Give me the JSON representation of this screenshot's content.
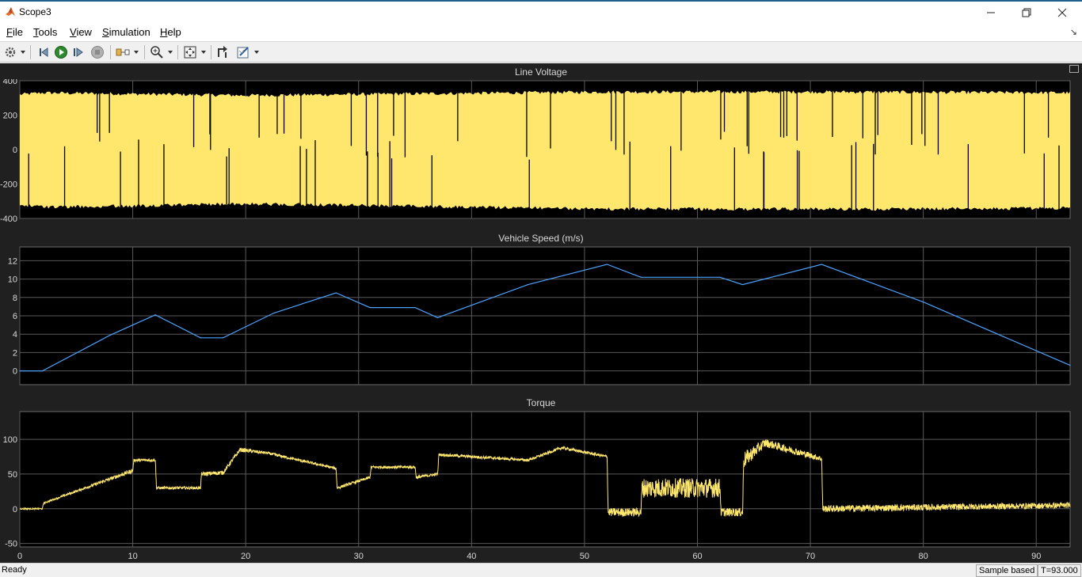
{
  "window": {
    "title": "Scope3",
    "icons": {
      "app": "matlab-logo-icon",
      "minimize": "minimize-icon",
      "restore": "restore-icon",
      "close": "close-icon"
    },
    "undock_icon": "undock-arrow-icon"
  },
  "menu": [
    {
      "label": "File",
      "mnemonic": "F",
      "rest": "ile"
    },
    {
      "label": "Tools",
      "mnemonic": "T",
      "rest": "ools"
    },
    {
      "label": "View",
      "mnemonic": "V",
      "rest": "iew"
    },
    {
      "label": "Simulation",
      "mnemonic": "S",
      "rest": "imulation"
    },
    {
      "label": "Help",
      "mnemonic": "H",
      "rest": "elp"
    }
  ],
  "toolbar": [
    "settings-gear-icon",
    "dropdown-arrow-icon",
    "step-back-icon",
    "run-icon",
    "step-forward-icon",
    "stop-icon",
    "highlight-signal-icon",
    "dropdown-arrow-icon",
    "zoom-in-icon",
    "dropdown-arrow-icon",
    "autoscale-icon",
    "dropdown-arrow-icon",
    "trigger-icon",
    "measurements-icon",
    "dropdown-arrow-icon"
  ],
  "colors": {
    "plot_bg": "#000000",
    "figure_bg": "#202020",
    "grid": "#5a5a5a",
    "axis_text": "#d8d8d8",
    "yellow_signal": "#ffe66d",
    "blue_signal": "#4aa3ff"
  },
  "chart_data": [
    {
      "type": "line",
      "title": "Line Voltage",
      "xlim": [
        0,
        93
      ],
      "ylim": [
        -400,
        400
      ],
      "yticks": [
        400,
        200,
        0,
        -200,
        -400
      ],
      "xticks": [
        0,
        10,
        20,
        30,
        40,
        50,
        60,
        70,
        80,
        90
      ],
      "show_x_tick_labels": false,
      "grid": true,
      "series": [
        {
          "color": "#ffe66d",
          "style": "pwm-band",
          "envelope_x": [
            0,
            2,
            20,
            52,
            72,
            93
          ],
          "upper": [
            320,
            330,
            315,
            335,
            335,
            330
          ],
          "lower": [
            -320,
            -335,
            -315,
            -345,
            -345,
            -340
          ]
        }
      ]
    },
    {
      "type": "line",
      "title": "Vehicle Speed (m/s)",
      "xlim": [
        0,
        93
      ],
      "ylim": [
        -1.5,
        13.5
      ],
      "yticks": [
        12,
        10,
        8,
        6,
        4,
        2,
        0
      ],
      "xticks": [
        0,
        10,
        20,
        30,
        40,
        50,
        60,
        70,
        80,
        90
      ],
      "show_x_tick_labels": false,
      "grid": true,
      "series": [
        {
          "color": "#4aa3ff",
          "x": [
            0,
            2,
            8,
            12,
            16,
            18,
            22.5,
            28,
            31,
            35,
            37,
            45,
            52,
            55,
            62,
            64,
            71,
            80,
            93
          ],
          "y": [
            0,
            0,
            3.9,
            6.1,
            3.6,
            3.6,
            6.3,
            8.5,
            6.9,
            6.9,
            5.8,
            9.4,
            11.6,
            10.2,
            10.2,
            9.4,
            11.6,
            7.5,
            0.6
          ]
        }
      ]
    },
    {
      "type": "line",
      "title": "Torque",
      "xlim": [
        0,
        93
      ],
      "ylim": [
        -55,
        140
      ],
      "yticks": [
        100,
        50,
        0,
        -50
      ],
      "xticks": [
        0,
        10,
        20,
        30,
        40,
        50,
        60,
        70,
        80,
        90
      ],
      "xticklabels": [
        "0",
        "10",
        "20",
        "30",
        "40",
        "50",
        "60",
        "70",
        "80",
        "90"
      ],
      "show_x_tick_labels": true,
      "grid": true,
      "series": [
        {
          "color": "#ffe66d",
          "x": [
            0,
            2,
            2.1,
            10,
            10.1,
            12,
            12.1,
            16,
            16.1,
            18,
            19.5,
            22,
            28,
            28.1,
            31,
            31.1,
            35,
            35.1,
            37,
            37.1,
            45,
            48,
            52,
            52.1,
            55,
            55.1,
            62,
            62.1,
            64,
            64.1,
            66,
            71,
            71.1,
            93
          ],
          "y": [
            0,
            0,
            8,
            55,
            70,
            70,
            30,
            30,
            50,
            52,
            85,
            80,
            58,
            30,
            45,
            60,
            60,
            45,
            50,
            78,
            70,
            88,
            75,
            -5,
            -5,
            30,
            30,
            -5,
            -5,
            70,
            95,
            72,
            0,
            5
          ],
          "noise": [
            1,
            1,
            1,
            3,
            2,
            2,
            2,
            2,
            3,
            3,
            3,
            2,
            2,
            2,
            2,
            2,
            2,
            2,
            2,
            2,
            2,
            2,
            2,
            6,
            6,
            14,
            14,
            6,
            6,
            12,
            6,
            4,
            5,
            4
          ]
        }
      ]
    }
  ],
  "status": {
    "left": "Ready",
    "sample": "Sample based",
    "time": "T=93.000"
  }
}
